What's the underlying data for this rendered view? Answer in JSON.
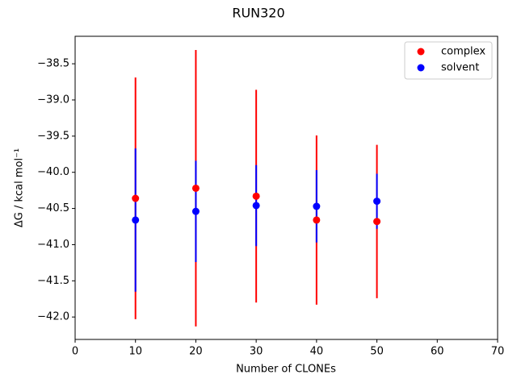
{
  "chart_data": {
    "type": "errorbar-scatter",
    "title": "RUN320",
    "x_label": "Number of CLONEs",
    "y_label": "ΔG / kcal mol⁻¹",
    "x": [
      10,
      20,
      30,
      40,
      50
    ],
    "series": [
      {
        "name": "complex",
        "color": "#ff0000",
        "values": [
          -40.36,
          -40.22,
          -40.33,
          -40.66,
          -40.68
        ],
        "errors": [
          1.67,
          1.91,
          1.47,
          1.17,
          1.06
        ]
      },
      {
        "name": "solvent",
        "color": "#0000ff",
        "values": [
          -40.66,
          -40.54,
          -40.46,
          -40.47,
          -40.4
        ],
        "errors": [
          0.99,
          0.7,
          0.56,
          0.5,
          0.38
        ]
      }
    ],
    "xlim": [
      0,
      70
    ],
    "xticks": [
      0,
      10,
      20,
      30,
      40,
      50,
      60,
      70
    ],
    "ylim": [
      -42.31,
      -38.12
    ],
    "yticks": [
      {
        "value": -42.0,
        "label": "−42.0"
      },
      {
        "value": -41.5,
        "label": "−41.5"
      },
      {
        "value": -41.0,
        "label": "−41.0"
      },
      {
        "value": -40.5,
        "label": "−40.5"
      },
      {
        "value": -40.0,
        "label": "−40.0"
      },
      {
        "value": -39.5,
        "label": "−39.5"
      },
      {
        "value": -39.0,
        "label": "−39.0"
      },
      {
        "value": -38.5,
        "label": "−38.5"
      }
    ],
    "legend": "upper right",
    "grid": false
  }
}
